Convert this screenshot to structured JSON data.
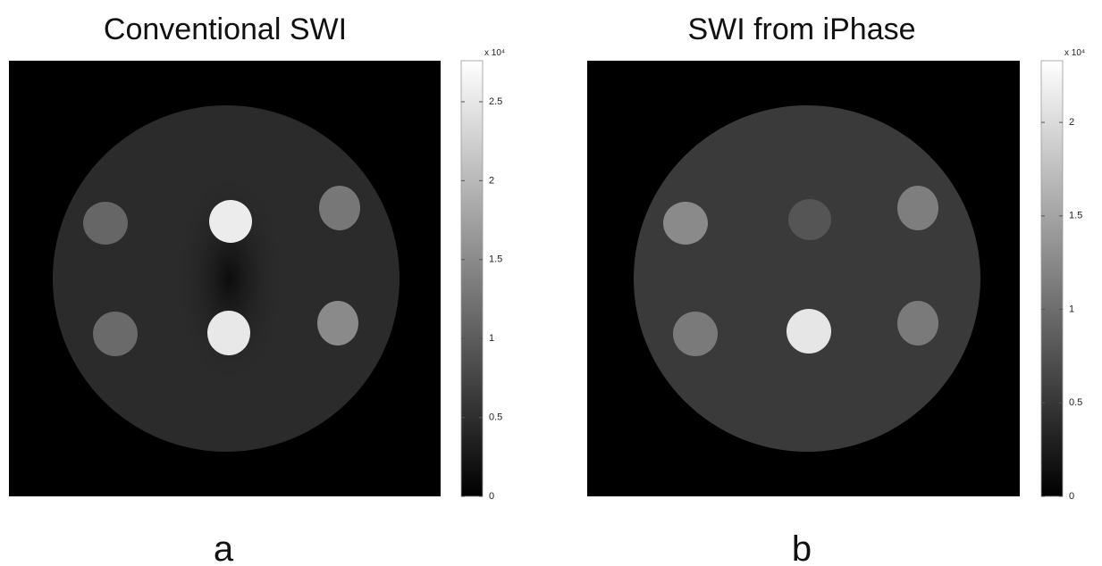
{
  "panels": [
    {
      "title": "Conventional SWI",
      "label": "a",
      "colorbar": {
        "scale_label": "x 10⁴",
        "range": [
          0,
          2.76
        ],
        "ticks": [
          0,
          0.5,
          1,
          1.5,
          2,
          2.5
        ]
      }
    },
    {
      "title": "SWI from iPhase",
      "label": "b",
      "colorbar": {
        "scale_label": "x 10⁴",
        "range": [
          0,
          2.33
        ],
        "ticks": [
          0,
          0.5,
          1,
          1.5,
          2
        ]
      }
    }
  ]
}
